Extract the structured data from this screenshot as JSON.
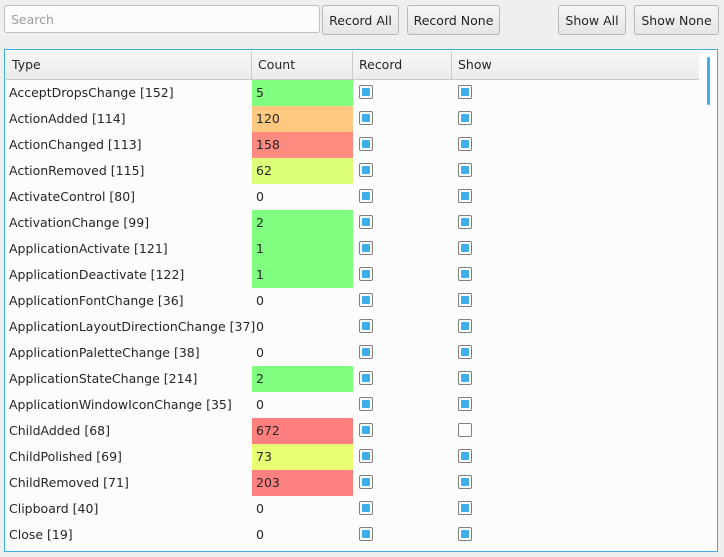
{
  "toolbar": {
    "search_placeholder": "Search",
    "search_value": "",
    "record_all_label": "Record All",
    "record_none_label": "Record None",
    "show_all_label": "Show All",
    "show_none_label": "Show None"
  },
  "table": {
    "columns": [
      "Type",
      "Count",
      "Record",
      "Show"
    ],
    "count_colors": {
      "low": "#80ff80",
      "mid": "#deff79",
      "midhigh": "#e8ff73",
      "high": "#ffc880",
      "veryhigh": "#ff8a80",
      "max": "#ff7f7f"
    },
    "rows": [
      {
        "type": "AcceptDropsChange [152]",
        "count": "5",
        "color": "#80ff80",
        "record": true,
        "show": true
      },
      {
        "type": "ActionAdded [114]",
        "count": "120",
        "color": "#ffc880",
        "record": true,
        "show": true
      },
      {
        "type": "ActionChanged [113]",
        "count": "158",
        "color": "#ff8a80",
        "record": true,
        "show": true
      },
      {
        "type": "ActionRemoved [115]",
        "count": "62",
        "color": "#deff79",
        "record": true,
        "show": true
      },
      {
        "type": "ActivateControl [80]",
        "count": "0",
        "color": "",
        "record": true,
        "show": true
      },
      {
        "type": "ActivationChange [99]",
        "count": "2",
        "color": "#80ff80",
        "record": true,
        "show": true
      },
      {
        "type": "ApplicationActivate [121]",
        "count": "1",
        "color": "#80ff80",
        "record": true,
        "show": true
      },
      {
        "type": "ApplicationDeactivate [122]",
        "count": "1",
        "color": "#80ff80",
        "record": true,
        "show": true
      },
      {
        "type": "ApplicationFontChange [36]",
        "count": "0",
        "color": "",
        "record": true,
        "show": true
      },
      {
        "type": "ApplicationLayoutDirectionChange [37]",
        "count": "0",
        "color": "",
        "record": true,
        "show": true
      },
      {
        "type": "ApplicationPaletteChange [38]",
        "count": "0",
        "color": "",
        "record": true,
        "show": true
      },
      {
        "type": "ApplicationStateChange [214]",
        "count": "2",
        "color": "#80ff80",
        "record": true,
        "show": true
      },
      {
        "type": "ApplicationWindowIconChange [35]",
        "count": "0",
        "color": "",
        "record": true,
        "show": true
      },
      {
        "type": "ChildAdded [68]",
        "count": "672",
        "color": "#ff7f7f",
        "record": true,
        "show": false
      },
      {
        "type": "ChildPolished [69]",
        "count": "73",
        "color": "#e8ff73",
        "record": true,
        "show": true
      },
      {
        "type": "ChildRemoved [71]",
        "count": "203",
        "color": "#ff8080",
        "record": true,
        "show": true
      },
      {
        "type": "Clipboard [40]",
        "count": "0",
        "color": "",
        "record": true,
        "show": true
      },
      {
        "type": "Close [19]",
        "count": "0",
        "color": "",
        "record": true,
        "show": true
      }
    ]
  }
}
